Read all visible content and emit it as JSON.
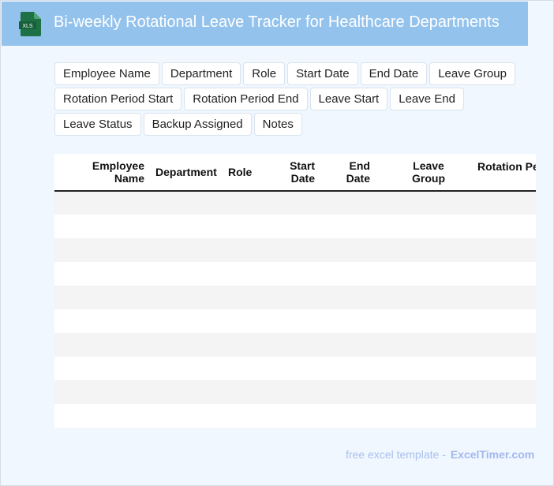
{
  "header": {
    "title": "Bi-weekly Rotational Leave Tracker for Healthcare Departments",
    "logo_text": "XLS",
    "logo_color": "#1e7145",
    "bg_color": "#93c2ec"
  },
  "fields": [
    "Employee Name",
    "Department",
    "Role",
    "Start Date",
    "End Date",
    "Leave Group",
    "Rotation Period Start",
    "Rotation Period End",
    "Leave Start",
    "Leave End",
    "Leave Status",
    "Backup Assigned",
    "Notes"
  ],
  "table": {
    "columns": [
      "Employee Name",
      "Department",
      "Role",
      "Start Date",
      "End Date",
      "Leave Group",
      "Rotation Period Start"
    ],
    "row_count": 10
  },
  "footer": {
    "text": "free excel template -",
    "brand": "ExcelTimer.com"
  }
}
